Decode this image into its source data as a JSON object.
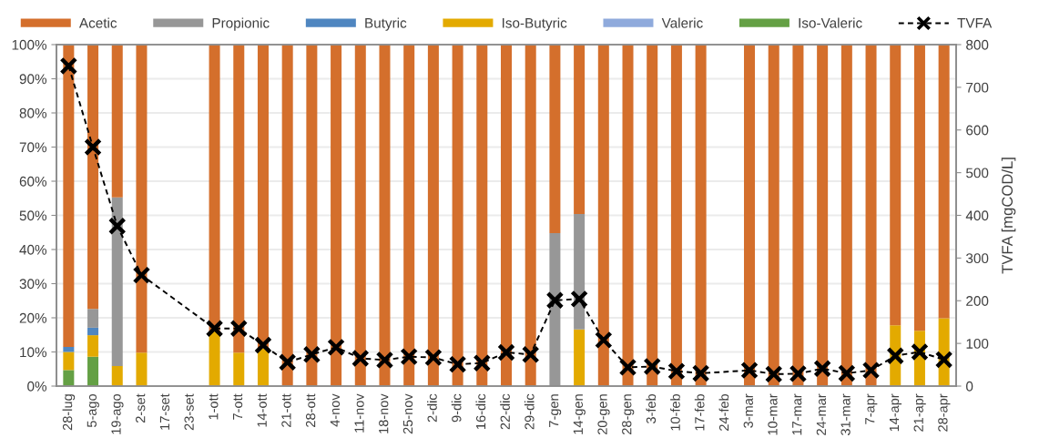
{
  "chart_data": {
    "type": "bar",
    "stacked": true,
    "categories": [
      "28-lug",
      "5-ago",
      "19-ago",
      "2-set",
      "17-set",
      "23-set",
      "1-ott",
      "7-ott",
      "14-ott",
      "21-ott",
      "28-ott",
      "4-nov",
      "11-nov",
      "18-nov",
      "25-nov",
      "2-dic",
      "9-dic",
      "16-dic",
      "22-dic",
      "29-dic",
      "7-gen",
      "14-gen",
      "20-gen",
      "28-gen",
      "3-feb",
      "10-feb",
      "17-feb",
      "24-feb",
      "3-mar",
      "10-mar",
      "17-mar",
      "24-mar",
      "31-mar",
      "7-apr",
      "14-apr",
      "21-apr",
      "28-apr"
    ],
    "series": [
      {
        "name": "Iso-Valeric",
        "color": "#64a044",
        "values": [
          4.7,
          8.6,
          0,
          0,
          null,
          null,
          0,
          0,
          0,
          0,
          0,
          0,
          0,
          0,
          0,
          0,
          0,
          0,
          0,
          0,
          0,
          0,
          0,
          0,
          0,
          0,
          0,
          null,
          0,
          0,
          0,
          0,
          0,
          0,
          0,
          0,
          0
        ]
      },
      {
        "name": "Valeric",
        "color": "#8faadc",
        "values": [
          0,
          0,
          0,
          0,
          null,
          null,
          0,
          0,
          0,
          0,
          0,
          0,
          0,
          0,
          0,
          0,
          0,
          0,
          0,
          0,
          0,
          0,
          0,
          0,
          0,
          0,
          0,
          null,
          0,
          0,
          0,
          0,
          0,
          0,
          0,
          0,
          0
        ]
      },
      {
        "name": "Iso-Butyric",
        "color": "#e3aa00",
        "values": [
          5.3,
          6.3,
          5.9,
          9.8,
          null,
          null,
          16,
          9.8,
          11,
          0,
          0,
          0,
          0,
          0,
          0,
          0,
          0,
          0,
          0,
          0,
          0,
          16.6,
          0,
          0,
          0,
          0,
          0,
          null,
          0,
          0,
          0,
          0,
          0,
          0,
          17.8,
          16.2,
          19.9
        ]
      },
      {
        "name": "Butyric",
        "color": "#4f86c0",
        "values": [
          1.5,
          2.2,
          0,
          0,
          null,
          null,
          0,
          0,
          0,
          0,
          0,
          0,
          0,
          0,
          0,
          0,
          0,
          0,
          0,
          0,
          0,
          0,
          0,
          0,
          0,
          0,
          0,
          null,
          0,
          0,
          0,
          0,
          0,
          0,
          0,
          0,
          0
        ]
      },
      {
        "name": "Propionic",
        "color": "#979797",
        "values": [
          0,
          5.5,
          49.4,
          0,
          null,
          null,
          0,
          0,
          0,
          0,
          0,
          0,
          0,
          0,
          0,
          0,
          0,
          0,
          0,
          0,
          44.8,
          33.8,
          0,
          0,
          0,
          0,
          0,
          null,
          0,
          0,
          0,
          0,
          0,
          0,
          0,
          0,
          0
        ]
      },
      {
        "name": "Acetic",
        "color": "#d46f2c",
        "values": [
          88.5,
          77.4,
          44.7,
          90.2,
          null,
          null,
          84,
          90.2,
          89,
          100,
          100,
          100,
          100,
          100,
          100,
          100,
          100,
          100,
          100,
          100,
          55.2,
          49.6,
          100,
          100,
          100,
          100,
          100,
          null,
          100,
          100,
          100,
          100,
          100,
          100,
          82.2,
          83.8,
          80.1
        ]
      },
      {
        "name": "TVFA",
        "type": "line",
        "axis": "y2",
        "color": "#000000",
        "marker": "cross",
        "line_style": "dashed",
        "values": [
          750,
          560,
          375,
          260,
          null,
          null,
          135,
          135,
          96,
          56,
          74,
          91,
          65,
          61,
          69,
          67,
          51,
          54,
          79,
          74,
          201,
          204,
          108,
          44,
          46,
          35,
          30,
          null,
          37,
          28,
          29,
          41,
          30,
          37,
          71,
          80,
          62
        ]
      }
    ],
    "ylim": [
      0,
      100
    ],
    "yticks": [
      {
        "value": 0,
        "label": "0%"
      },
      {
        "value": 10,
        "label": "10%"
      },
      {
        "value": 20,
        "label": "20%"
      },
      {
        "value": 30,
        "label": "30%"
      },
      {
        "value": 40,
        "label": "40%"
      },
      {
        "value": 50,
        "label": "50%"
      },
      {
        "value": 60,
        "label": "60%"
      },
      {
        "value": 70,
        "label": "70%"
      },
      {
        "value": 80,
        "label": "80%"
      },
      {
        "value": 90,
        "label": "90%"
      },
      {
        "value": 100,
        "label": "100%"
      }
    ],
    "y2lim": [
      0,
      800
    ],
    "y2ticks": [
      0,
      100,
      200,
      300,
      400,
      500,
      600,
      700,
      800
    ],
    "y2label": "TVFA [mgCOD/L]",
    "grid": true,
    "legend": "top"
  }
}
